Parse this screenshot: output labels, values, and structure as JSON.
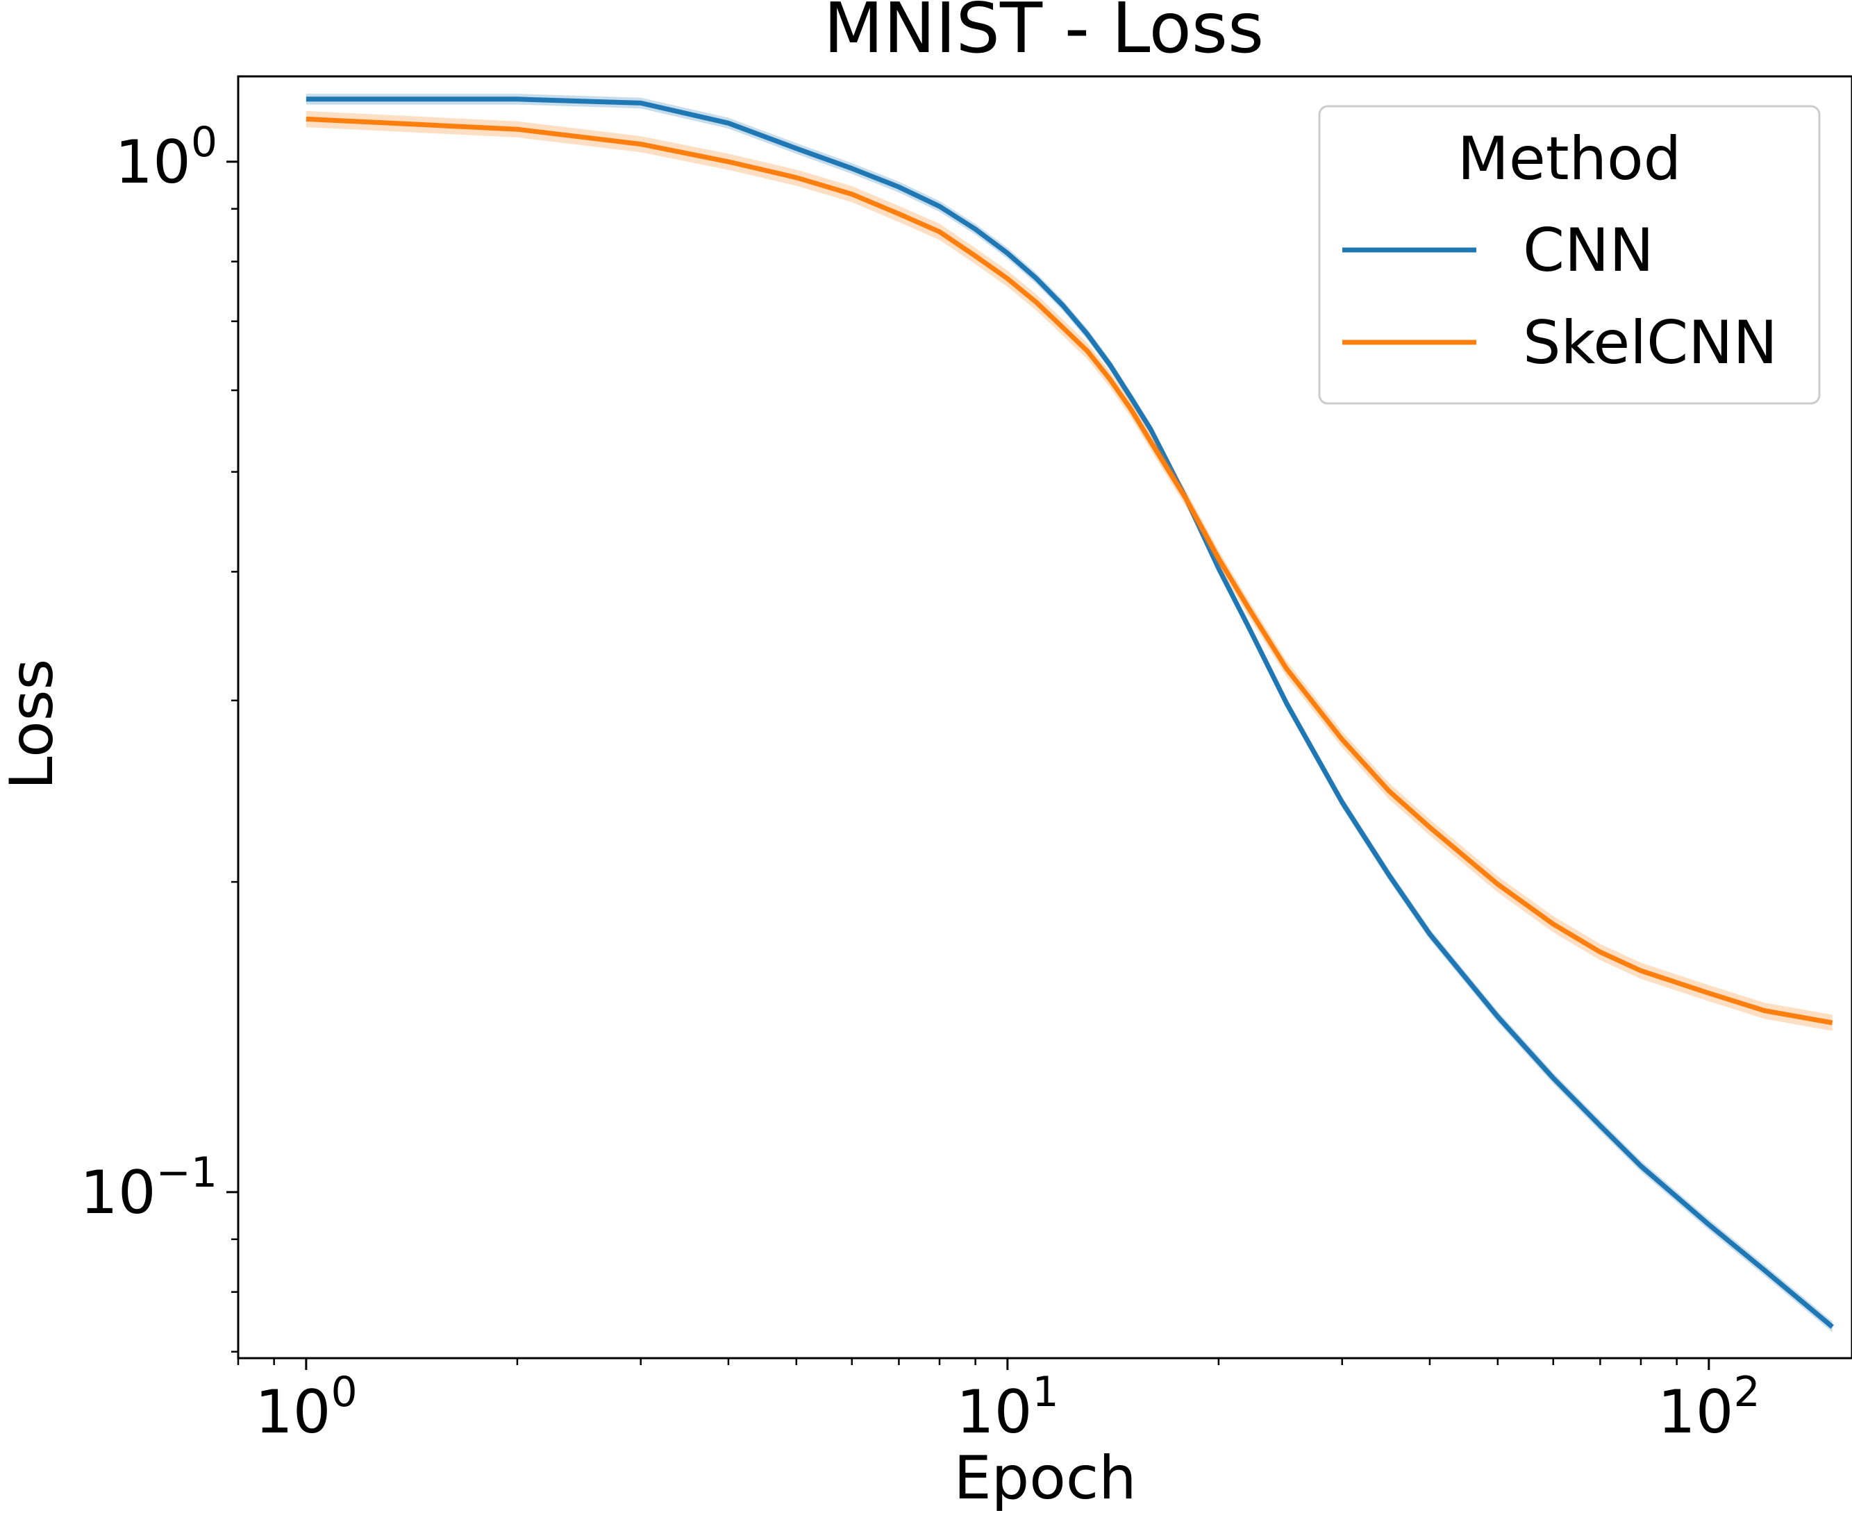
{
  "chart_data": {
    "type": "line",
    "title": "MNIST - Loss",
    "xlabel": "Epoch",
    "ylabel": "Loss",
    "xscale": "log",
    "yscale": "log",
    "xlim": [
      0.8,
      160
    ],
    "ylim": [
      0.069,
      1.21
    ],
    "grid": false,
    "x_ticks": [
      {
        "base": "10",
        "exp": "0",
        "value": 1
      },
      {
        "base": "10",
        "exp": "1",
        "value": 10
      },
      {
        "base": "10",
        "exp": "2",
        "value": 100
      }
    ],
    "y_ticks": [
      {
        "base": "10",
        "exp": "0",
        "value": 1
      },
      {
        "base": "10",
        "exp": "−1",
        "value": 0.1
      }
    ],
    "legend": {
      "title": "Method",
      "position": "top-right"
    },
    "series": [
      {
        "name": "CNN",
        "color": "#1f77b4",
        "band_width": 0.012,
        "x": [
          1,
          2,
          3,
          4,
          5,
          6,
          7,
          8,
          9,
          10,
          11,
          12,
          13,
          14,
          15,
          16,
          18,
          20,
          22,
          25,
          30,
          35,
          40,
          50,
          60,
          70,
          80,
          100,
          120,
          150
        ],
        "y": [
          1.15,
          1.15,
          1.14,
          1.09,
          1.03,
          0.985,
          0.945,
          0.905,
          0.86,
          0.815,
          0.77,
          0.725,
          0.68,
          0.635,
          0.59,
          0.55,
          0.47,
          0.403,
          0.355,
          0.298,
          0.239,
          0.203,
          0.178,
          0.148,
          0.129,
          0.116,
          0.106,
          0.093,
          0.084,
          0.074
        ]
      },
      {
        "name": "SkelCNN",
        "color": "#ff7f0e",
        "band_width": 0.018,
        "x": [
          1,
          2,
          3,
          4,
          5,
          6,
          7,
          8,
          9,
          10,
          11,
          12,
          13,
          14,
          15,
          16,
          18,
          20,
          22,
          25,
          30,
          35,
          40,
          50,
          60,
          70,
          80,
          100,
          120,
          150
        ],
        "y": [
          1.1,
          1.075,
          1.04,
          1.0,
          0.965,
          0.93,
          0.89,
          0.855,
          0.81,
          0.77,
          0.73,
          0.69,
          0.655,
          0.615,
          0.575,
          0.535,
          0.47,
          0.412,
          0.37,
          0.322,
          0.275,
          0.245,
          0.226,
          0.199,
          0.182,
          0.171,
          0.164,
          0.156,
          0.15,
          0.146
        ]
      }
    ]
  }
}
